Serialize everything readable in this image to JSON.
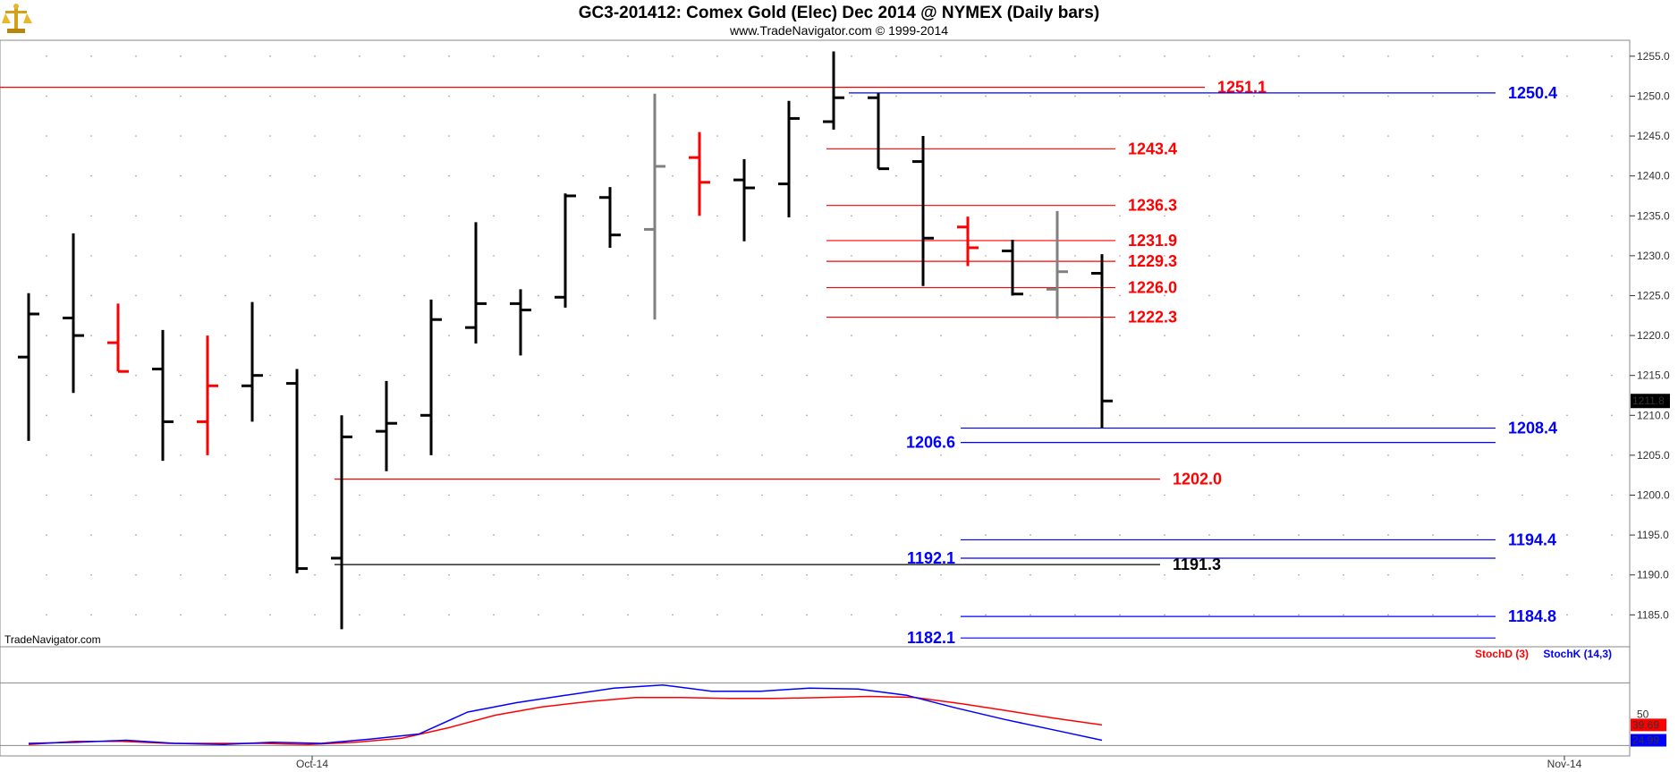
{
  "header": {
    "title": "GC3-201412:  Comex Gold (Elec) Dec 2014 @ NYMEX  (Daily bars)",
    "subtitle": "www.TradeNavigator.com © 1999-2014",
    "watermark": "TradeNavigator.com",
    "logo_icon": "scale-logo-icon"
  },
  "colors": {
    "up_bar": "#000000",
    "down_bar": "#ff0000",
    "neutral_bar": "#808080",
    "resistance": "#ff0000",
    "support": "#0000ff",
    "stoch_d": "#ff0000",
    "stoch_k": "#0000ff"
  },
  "chart_data": [
    {
      "type": "ohlc",
      "ylim": [
        1181,
        1257
      ],
      "ytick_values": [
        1185,
        1190,
        1195,
        1200,
        1205,
        1210,
        1215,
        1220,
        1225,
        1230,
        1235,
        1240,
        1245,
        1250,
        1255
      ],
      "ytick_labels": [
        "1185.0",
        "1190.0",
        "1195.0",
        "1200.0",
        "1205.0",
        "1210.0",
        "1215.0",
        "1220.0",
        "1225.0",
        "1230.0",
        "1235.0",
        "1240.0",
        "1245.0",
        "1250.0",
        "1255.0"
      ],
      "x_labels": [
        {
          "label": "Oct-14",
          "bar": 6.5
        },
        {
          "label": "Nov-14",
          "bar": 34.5
        }
      ],
      "last_price": "1211.8",
      "last_price_value": 1211.8,
      "bars": [
        {
          "o": 1217.3,
          "h": 1225.3,
          "l": 1206.8,
          "c": 1222.7,
          "color": "black"
        },
        {
          "o": 1222.2,
          "h": 1232.8,
          "l": 1212.8,
          "c": 1220.0,
          "color": "black"
        },
        {
          "o": 1219.1,
          "h": 1224.0,
          "l": 1215.5,
          "c": 1215.5,
          "color": "red"
        },
        {
          "o": 1215.8,
          "h": 1220.7,
          "l": 1204.3,
          "c": 1209.2,
          "color": "black"
        },
        {
          "o": 1209.2,
          "h": 1220.0,
          "l": 1205.0,
          "c": 1213.7,
          "color": "red"
        },
        {
          "o": 1213.7,
          "h": 1224.2,
          "l": 1209.2,
          "c": 1215.0,
          "color": "black"
        },
        {
          "o": 1214.0,
          "h": 1215.8,
          "l": 1190.2,
          "c": 1190.8,
          "color": "black"
        },
        {
          "o": 1192.1,
          "h": 1210.0,
          "l": 1183.2,
          "c": 1207.3,
          "color": "black"
        },
        {
          "o": 1208.0,
          "h": 1214.3,
          "l": 1203.0,
          "c": 1209.0,
          "color": "black"
        },
        {
          "o": 1210.0,
          "h": 1224.5,
          "l": 1205.0,
          "c": 1222.0,
          "color": "black"
        },
        {
          "o": 1221.0,
          "h": 1234.2,
          "l": 1219.0,
          "c": 1224.0,
          "color": "black"
        },
        {
          "o": 1224.0,
          "h": 1225.8,
          "l": 1217.5,
          "c": 1223.2,
          "color": "black"
        },
        {
          "o": 1224.8,
          "h": 1237.8,
          "l": 1223.5,
          "c": 1237.5,
          "color": "black"
        },
        {
          "o": 1237.3,
          "h": 1238.6,
          "l": 1231.0,
          "c": 1232.6,
          "color": "black"
        },
        {
          "o": 1233.3,
          "h": 1250.3,
          "l": 1222.0,
          "c": 1241.2,
          "color": "gray"
        },
        {
          "o": 1242.3,
          "h": 1245.5,
          "l": 1235.0,
          "c": 1239.2,
          "color": "red"
        },
        {
          "o": 1239.5,
          "h": 1242.1,
          "l": 1231.8,
          "c": 1238.5,
          "color": "black"
        },
        {
          "o": 1239.0,
          "h": 1249.4,
          "l": 1234.8,
          "c": 1247.2,
          "color": "black"
        },
        {
          "o": 1246.8,
          "h": 1255.6,
          "l": 1245.8,
          "c": 1249.8,
          "color": "black"
        },
        {
          "o": 1249.8,
          "h": 1250.4,
          "l": 1240.9,
          "c": 1240.9,
          "color": "black"
        },
        {
          "o": 1241.8,
          "h": 1245.0,
          "l": 1226.2,
          "c": 1232.2,
          "color": "black"
        },
        {
          "o": 1233.6,
          "h": 1234.9,
          "l": 1228.7,
          "c": 1231.0,
          "color": "red"
        },
        {
          "o": 1230.6,
          "h": 1232.0,
          "l": 1225.0,
          "c": 1225.2,
          "color": "black"
        },
        {
          "o": 1225.8,
          "h": 1235.6,
          "l": 1222.1,
          "c": 1228.0,
          "color": "gray"
        },
        {
          "o": 1227.8,
          "h": 1230.2,
          "l": 1208.4,
          "c": 1211.8,
          "color": "black"
        }
      ],
      "levels": [
        {
          "value": 1251.1,
          "label": "1251.1",
          "color": "red",
          "from_bar": -1,
          "to_bar": 26.5,
          "label_side": "right"
        },
        {
          "value": 1250.4,
          "label": "1250.4",
          "color": "blue",
          "from_bar": 18.5,
          "to_bar": 33,
          "label_side": "right"
        },
        {
          "value": 1243.4,
          "label": "1243.4",
          "color": "red",
          "from_bar": 18,
          "to_bar": 24.5,
          "label_side": "right"
        },
        {
          "value": 1236.3,
          "label": "1236.3",
          "color": "red",
          "from_bar": 18,
          "to_bar": 24.5,
          "label_side": "right"
        },
        {
          "value": 1231.9,
          "label": "1231.9",
          "color": "red",
          "from_bar": 18,
          "to_bar": 24.5,
          "label_side": "right"
        },
        {
          "value": 1229.3,
          "label": "1229.3",
          "color": "red",
          "from_bar": 18,
          "to_bar": 24.5,
          "label_side": "right"
        },
        {
          "value": 1226.0,
          "label": "1226.0",
          "color": "red",
          "from_bar": 18,
          "to_bar": 24.5,
          "label_side": "right"
        },
        {
          "value": 1222.3,
          "label": "1222.3",
          "color": "red",
          "from_bar": 18,
          "to_bar": 24.5,
          "label_side": "right"
        },
        {
          "value": 1208.4,
          "label": "1208.4",
          "color": "blue",
          "from_bar": 21,
          "to_bar": 33,
          "label_side": "right"
        },
        {
          "value": 1206.6,
          "label": "1206.6",
          "color": "blue",
          "from_bar": 21,
          "to_bar": 33,
          "label_side": "left"
        },
        {
          "value": 1202.0,
          "label": "1202.0",
          "color": "red",
          "from_bar": 7,
          "to_bar": 25.5,
          "label_side": "right"
        },
        {
          "value": 1194.4,
          "label": "1194.4",
          "color": "blue",
          "from_bar": 21,
          "to_bar": 33,
          "label_side": "right"
        },
        {
          "value": 1192.1,
          "label": "1192.1",
          "color": "blue",
          "from_bar": 21,
          "to_bar": 33,
          "label_side": "left"
        },
        {
          "value": 1191.3,
          "label": "1191.3",
          "color": "black",
          "from_bar": 7,
          "to_bar": 25.5,
          "label_side": "right"
        },
        {
          "value": 1184.8,
          "label": "1184.8",
          "color": "blue",
          "from_bar": 21,
          "to_bar": 33,
          "label_side": "right"
        },
        {
          "value": 1182.1,
          "label": "1182.1",
          "color": "blue",
          "from_bar": 21,
          "to_bar": 33,
          "label_side": "left"
        }
      ]
    },
    {
      "type": "line",
      "ylim": [
        10,
        100
      ],
      "ytick_labels": [
        "50"
      ],
      "ytick_values": [
        50
      ],
      "series": [
        {
          "name": "StochD (3)",
          "color": "red",
          "last_label": "39.69",
          "values": [
            21,
            24,
            24,
            22,
            22,
            22,
            21,
            23,
            27,
            37,
            49,
            57,
            62,
            66,
            66,
            65,
            65,
            66,
            67,
            66,
            60,
            53,
            46,
            39.69
          ]
        },
        {
          "name": "StochK (14,3)",
          "color": "blue",
          "last_label": "24.99",
          "values": [
            22,
            23,
            25,
            22,
            21,
            23,
            22,
            26,
            31,
            52,
            61,
            68,
            75,
            78,
            72,
            72,
            75,
            74,
            68,
            56,
            45,
            35,
            24.99
          ]
        }
      ]
    }
  ]
}
